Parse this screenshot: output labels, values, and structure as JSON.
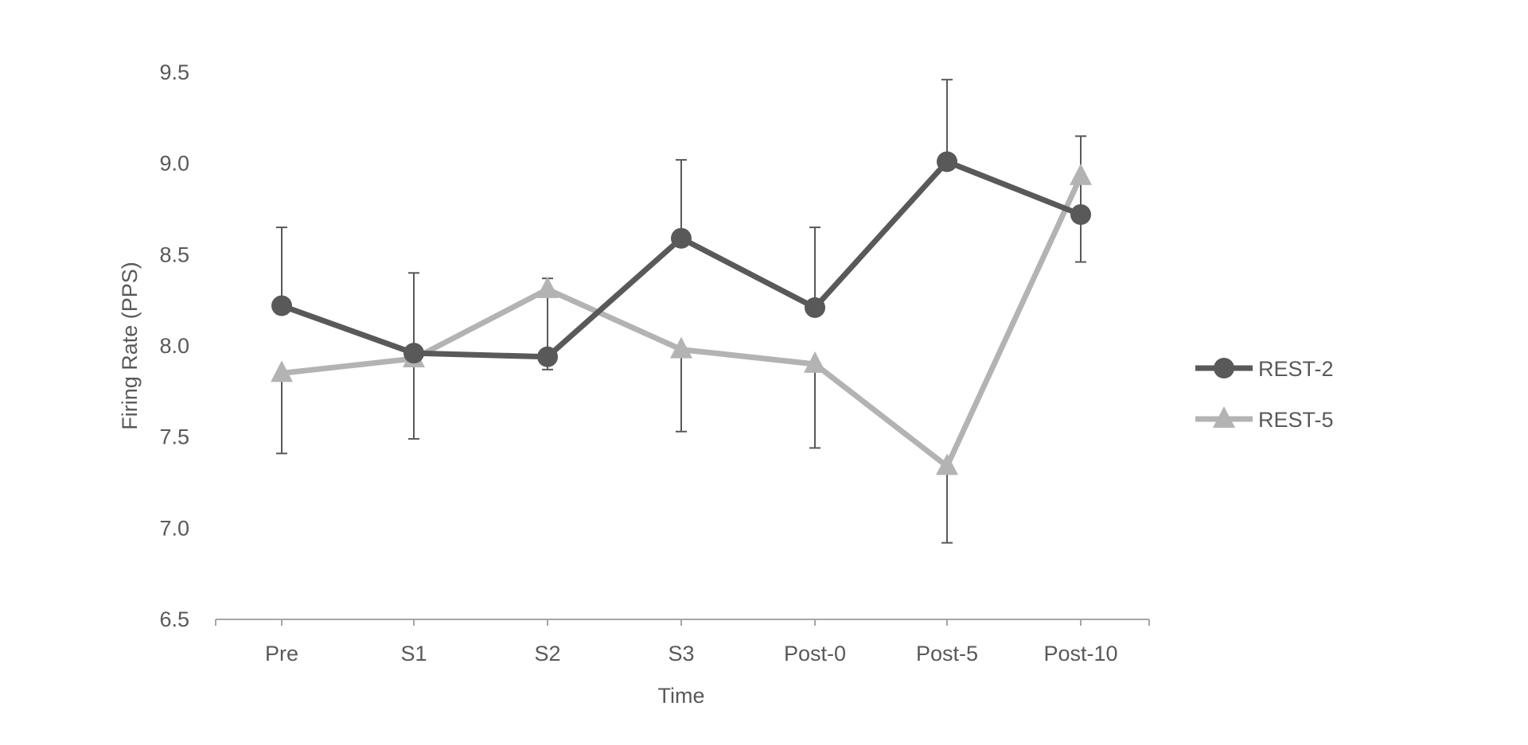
{
  "chart_data": {
    "type": "line",
    "title": "",
    "xlabel": "Time",
    "ylabel": "Firing Rate (PPS)",
    "categories": [
      "Pre",
      "S1",
      "S2",
      "S3",
      "Post-0",
      "Post-5",
      "Post-10"
    ],
    "ylim": [
      6.5,
      9.5
    ],
    "yticks": [
      "6.5",
      "7.0",
      "7.5",
      "8.0",
      "8.5",
      "9.0",
      "9.5"
    ],
    "grid": false,
    "legend_position": "right",
    "series": [
      {
        "name": "REST-2",
        "marker": "circle",
        "color": "#595959",
        "values": [
          8.22,
          7.96,
          7.94,
          8.59,
          8.21,
          9.01,
          8.72
        ],
        "error": [
          0.43,
          0.44,
          0.43,
          0.43,
          0.44,
          0.45,
          0.43
        ],
        "error_direction": "up"
      },
      {
        "name": "REST-5",
        "marker": "triangle",
        "color": "#b3b3b3",
        "values": [
          7.85,
          7.93,
          8.31,
          7.98,
          7.9,
          7.34,
          8.93
        ],
        "error": [
          0.44,
          0.44,
          0.44,
          0.45,
          0.46,
          0.42,
          0.47
        ],
        "error_direction": "down"
      }
    ]
  }
}
